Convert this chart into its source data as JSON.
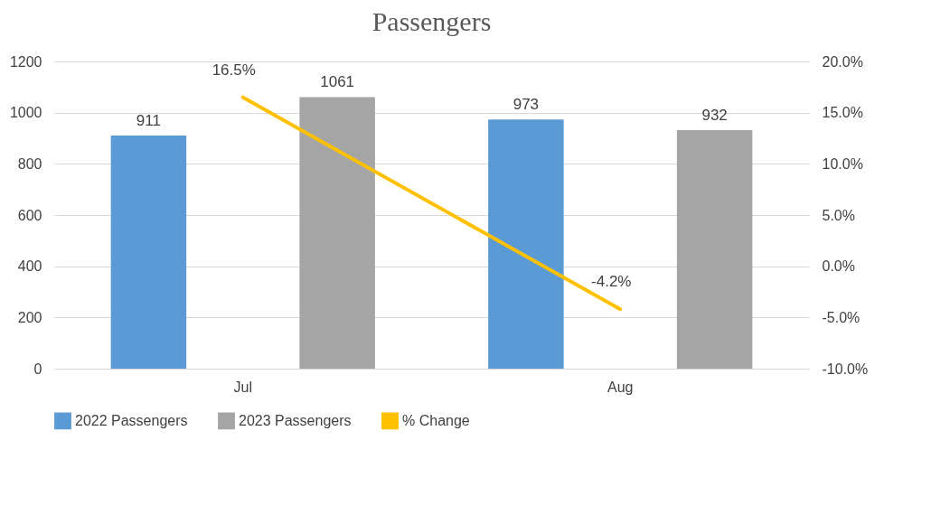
{
  "chart_data": {
    "type": "bar",
    "title": "Passengers",
    "categories": [
      "Jul",
      "Aug"
    ],
    "series": [
      {
        "name": "2022 Passengers",
        "color": "#5b9bd5",
        "values": [
          911,
          973
        ]
      },
      {
        "name": "2023 Passengers",
        "color": "#a5a5a5",
        "values": [
          1061,
          932
        ]
      },
      {
        "name": "% Change",
        "type": "line",
        "axis": "y2",
        "color": "#ffc000",
        "values": [
          16.5,
          -4.2
        ],
        "value_labels": [
          "16.5%",
          "-4.2%"
        ]
      }
    ],
    "ylim": [
      0,
      1200
    ],
    "yticks": [
      0,
      200,
      400,
      600,
      800,
      1000,
      1200
    ],
    "y2lim": [
      -10,
      20
    ],
    "y2ticks": [
      {
        "value": -10,
        "label": "-10.0%"
      },
      {
        "value": -5,
        "label": "-5.0%"
      },
      {
        "value": 0,
        "label": "0.0%"
      },
      {
        "value": 5,
        "label": "5.0%"
      },
      {
        "value": 10,
        "label": "10.0%"
      },
      {
        "value": 15,
        "label": "15.0%"
      },
      {
        "value": 20,
        "label": "20.0%"
      }
    ],
    "data_labels": true,
    "grid": "y",
    "legend": "bottom"
  }
}
